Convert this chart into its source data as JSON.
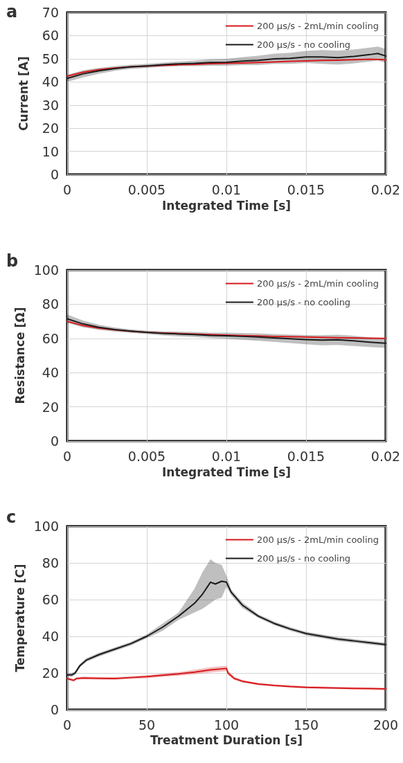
{
  "chart_data": [
    {
      "type": "line",
      "title": "a",
      "xlabel": "Integrated Time [s]",
      "ylabel": "Current [A]",
      "xlim": [
        0,
        0.02
      ],
      "xticks": [
        0,
        0.005,
        0.01,
        0.015,
        0.02
      ],
      "ylim": [
        0,
        70
      ],
      "yticks": [
        0,
        10,
        20,
        30,
        40,
        50,
        60,
        70
      ],
      "grid": true,
      "legend": "top right",
      "marker": "none",
      "line_style": "solid",
      "series": [
        {
          "name": "200 µs/s - 2mL/min cooling",
          "color": "#d7191c",
          "x": [
            0,
            0.001,
            0.002,
            0.003,
            0.004,
            0.005,
            0.006,
            0.007,
            0.008,
            0.009,
            0.01,
            0.011,
            0.012,
            0.013,
            0.014,
            0.015,
            0.016,
            0.017,
            0.018,
            0.019,
            0.02
          ],
          "values": [
            42.5,
            44.2,
            45.3,
            46,
            46.5,
            46.8,
            47.1,
            47.4,
            47.6,
            47.9,
            48,
            48.2,
            48.4,
            48.6,
            48.9,
            49.1,
            49.3,
            49.4,
            49.6,
            49.8,
            49.6
          ]
        },
        {
          "name": "200 µs/s - no cooling",
          "color": "#1a1a1a",
          "x": [
            0,
            0.001,
            0.002,
            0.003,
            0.004,
            0.005,
            0.006,
            0.007,
            0.008,
            0.009,
            0.01,
            0.011,
            0.012,
            0.013,
            0.014,
            0.015,
            0.016,
            0.017,
            0.018,
            0.019,
            0.0195,
            0.02
          ],
          "values": [
            41.5,
            43.5,
            44.8,
            45.8,
            46.5,
            46.9,
            47.4,
            47.8,
            48,
            48.4,
            48.5,
            49,
            49.3,
            50,
            50.2,
            50.8,
            50.8,
            50.5,
            51,
            51.8,
            52.3,
            51.2
          ],
          "lower": [
            40,
            42,
            43.5,
            44.8,
            45.6,
            46,
            46.5,
            46.8,
            46.8,
            47,
            47,
            47.3,
            47.3,
            47.8,
            47.8,
            48.2,
            47.8,
            47.5,
            48,
            48.8,
            49.3,
            48.2
          ],
          "upper": [
            43,
            45,
            46.1,
            46.8,
            47.4,
            47.8,
            48.3,
            48.8,
            49.2,
            49.8,
            50,
            50.7,
            51.3,
            52.2,
            52.6,
            53.4,
            53.8,
            53.5,
            54,
            54.8,
            55.3,
            54.2
          ]
        }
      ]
    },
    {
      "type": "line",
      "title": "b",
      "xlabel": "Integrated Time [s]",
      "ylabel": "Resistance [Ω]",
      "xlim": [
        0,
        0.02
      ],
      "xticks": [
        0,
        0.005,
        0.01,
        0.015,
        0.02
      ],
      "ylim": [
        0,
        100
      ],
      "yticks": [
        0,
        20,
        40,
        60,
        80,
        100
      ],
      "grid": true,
      "legend": "top right",
      "marker": "none",
      "line_style": "solid",
      "series": [
        {
          "name": "200 µs/s - 2mL/min cooling",
          "color": "#d7191c",
          "x": [
            0,
            0.001,
            0.002,
            0.003,
            0.004,
            0.005,
            0.006,
            0.007,
            0.008,
            0.009,
            0.01,
            0.011,
            0.012,
            0.013,
            0.014,
            0.015,
            0.016,
            0.017,
            0.018,
            0.019,
            0.02
          ],
          "values": [
            70,
            67.5,
            66,
            65,
            64.2,
            63.6,
            63.2,
            62.9,
            62.6,
            62.3,
            62,
            61.7,
            61.5,
            61.2,
            61,
            60.8,
            60.6,
            60.4,
            60.3,
            60.1,
            60
          ]
        },
        {
          "name": "200 µs/s - no cooling",
          "color": "#1a1a1a",
          "x": [
            0,
            0.001,
            0.002,
            0.003,
            0.004,
            0.005,
            0.006,
            0.007,
            0.008,
            0.009,
            0.01,
            0.011,
            0.012,
            0.013,
            0.014,
            0.015,
            0.016,
            0.017,
            0.018,
            0.019,
            0.02
          ],
          "values": [
            71.5,
            68.5,
            66.5,
            65.2,
            64.3,
            63.6,
            63,
            62.6,
            62.3,
            61.8,
            61.6,
            61.2,
            60.8,
            60.3,
            59.8,
            59.3,
            59,
            59.2,
            58.6,
            57.8,
            57.2
          ],
          "lower": [
            69,
            66.5,
            65,
            64,
            63.3,
            62.6,
            61.8,
            61.2,
            60.8,
            60.2,
            59.8,
            59.2,
            58.6,
            58,
            57.3,
            56.6,
            56,
            56.2,
            55.6,
            55,
            54.5
          ],
          "upper": [
            74,
            70.5,
            68,
            66.4,
            65.3,
            64.6,
            64.2,
            64,
            63.8,
            63.4,
            63.4,
            63.2,
            63,
            62.6,
            62.3,
            62,
            62,
            62.2,
            61.6,
            60.6,
            60
          ]
        }
      ]
    },
    {
      "type": "line",
      "title": "c",
      "xlabel": "Treatment Duration [s]",
      "ylabel": "Temperature [C]",
      "xlim": [
        0,
        200
      ],
      "xticks": [
        0,
        50,
        100,
        150,
        200
      ],
      "ylim": [
        0,
        100
      ],
      "yticks": [
        0,
        20,
        40,
        60,
        80,
        100
      ],
      "grid": true,
      "legend": "top right",
      "marker": "none",
      "line_style": "solid",
      "series": [
        {
          "name": "200 µs/s - 2mL/min cooling",
          "color": "#d7191c",
          "x": [
            0,
            4,
            6,
            10,
            20,
            30,
            40,
            50,
            60,
            70,
            80,
            90,
            100,
            101,
            105,
            110,
            120,
            130,
            140,
            150,
            160,
            170,
            180,
            190,
            200
          ],
          "values": [
            17,
            16,
            17,
            17.3,
            17.1,
            17,
            17.5,
            18,
            18.8,
            19.5,
            20.5,
            21.7,
            22.5,
            20,
            17,
            15.5,
            14,
            13.2,
            12.6,
            12.2,
            12,
            11.8,
            11.6,
            11.5,
            11.3
          ],
          "lower": [
            16.3,
            15.3,
            16.3,
            16.6,
            16.4,
            16.3,
            16.8,
            17.2,
            17.9,
            18.5,
            19.2,
            20.3,
            21,
            18.8,
            16.2,
            14.8,
            13.4,
            12.6,
            12,
            11.6,
            11.4,
            11.2,
            11,
            10.9,
            10.7
          ],
          "upper": [
            17.7,
            16.7,
            17.7,
            18,
            17.8,
            17.7,
            18.2,
            18.8,
            19.7,
            20.5,
            21.8,
            23.1,
            24,
            21.2,
            17.8,
            16.2,
            14.6,
            13.8,
            13.2,
            12.8,
            12.6,
            12.4,
            12.2,
            12.1,
            11.9
          ]
        },
        {
          "name": "200 µs/s - no cooling",
          "color": "#1a1a1a",
          "x": [
            0,
            3,
            5,
            8,
            12,
            20,
            30,
            40,
            50,
            60,
            70,
            80,
            85,
            90,
            93,
            97,
            100,
            103,
            110,
            120,
            130,
            140,
            150,
            160,
            170,
            180,
            190,
            200
          ],
          "values": [
            19,
            19,
            20,
            24,
            27,
            30,
            33,
            36,
            40,
            45,
            51,
            58,
            63,
            69.5,
            68.5,
            70,
            69.5,
            64,
            57,
            51,
            47,
            44,
            41.5,
            40,
            38.5,
            37.5,
            36.5,
            35.5
          ],
          "lower": [
            18,
            18,
            19,
            23,
            26,
            29,
            32,
            35,
            39,
            43,
            49,
            53,
            55,
            58,
            60,
            61,
            67,
            62.5,
            55.5,
            50,
            46,
            43,
            40.5,
            39,
            37.5,
            36.5,
            35.5,
            34.5
          ],
          "upper": [
            20,
            20,
            21,
            25,
            28,
            31,
            34,
            37,
            41,
            47,
            53,
            66,
            75,
            82,
            80,
            79,
            73,
            65.5,
            58.5,
            52,
            48,
            45,
            42.5,
            41,
            39.5,
            38.5,
            37.5,
            36.5
          ]
        }
      ]
    }
  ]
}
